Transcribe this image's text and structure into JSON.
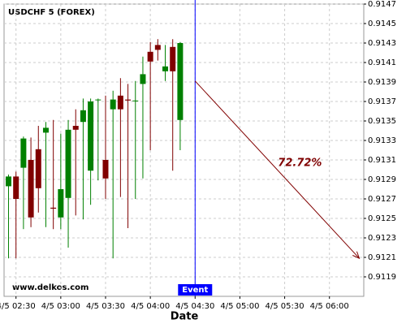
{
  "chart_data": {
    "type": "candlestick",
    "title": "USDCHF 5 (FOREX)",
    "x_label": "Date",
    "watermark": "www.delkos.com",
    "x": [
      "4/5 02:25",
      "4/5 02:30",
      "4/5 02:35",
      "4/5 02:40",
      "4/5 02:45",
      "4/5 02:50",
      "4/5 02:55",
      "4/5 03:00",
      "4/5 03:05",
      "4/5 03:10",
      "4/5 03:15",
      "4/5 03:20",
      "4/5 03:25",
      "4/5 03:30",
      "4/5 03:35",
      "4/5 03:40",
      "4/5 03:45",
      "4/5 03:50",
      "4/5 03:55",
      "4/5 04:00",
      "4/5 04:05",
      "4/5 04:10",
      "4/5 04:15",
      "4/5 04:20"
    ],
    "open": [
      0.91283,
      0.91293,
      0.91302,
      0.9131,
      0.91321,
      0.91338,
      0.91261,
      0.91251,
      0.91271,
      0.91345,
      0.91349,
      0.91299,
      0.91372,
      0.9131,
      0.91362,
      0.91376,
      0.91372,
      0.91371,
      0.91388,
      0.91421,
      0.91428,
      0.91401,
      0.91426,
      0.91351
    ],
    "high": [
      0.91295,
      0.91298,
      0.91334,
      0.91333,
      0.91345,
      0.91349,
      0.91351,
      0.91337,
      0.91351,
      0.91362,
      0.91373,
      0.91373,
      0.91373,
      0.91376,
      0.91381,
      0.91394,
      0.91388,
      0.91391,
      0.91416,
      0.91431,
      0.91434,
      0.91428,
      0.91434,
      0.91431
    ],
    "low": [
      0.91209,
      0.91209,
      0.91239,
      0.91241,
      0.91256,
      0.91241,
      0.91239,
      0.91239,
      0.9122,
      0.91253,
      0.91249,
      0.91264,
      0.91289,
      0.9127,
      0.91209,
      0.91272,
      0.9124,
      0.9127,
      0.91291,
      0.9132,
      0.91412,
      0.91391,
      0.91299,
      0.9132
    ],
    "close": [
      0.91293,
      0.9127,
      0.91332,
      0.91251,
      0.91281,
      0.91343,
      0.9126,
      0.9128,
      0.91341,
      0.91341,
      0.91361,
      0.9137,
      0.91372,
      0.91291,
      0.91372,
      0.91362,
      0.91371,
      0.91371,
      0.91398,
      0.91411,
      0.91423,
      0.91406,
      0.91401,
      0.9143
    ],
    "up_color": "#008000",
    "down_color": "#800000",
    "xlim": [
      "4/5 02:22",
      "4/5 06:23"
    ],
    "xticks": [
      "4/5 02:30",
      "4/5 03:00",
      "4/5 03:30",
      "4/5 04:00",
      "4/5 04:30",
      "4/5 05:00",
      "4/5 05:30",
      "4/5 06:00"
    ],
    "ylim": [
      0.9117,
      0.9147
    ],
    "yticks": [
      0.9119,
      0.9121,
      0.9123,
      0.9125,
      0.9127,
      0.9129,
      0.9131,
      0.9133,
      0.9135,
      0.9137,
      0.9139,
      0.9141,
      0.9143,
      0.9145,
      0.9147
    ],
    "grid": true,
    "event": {
      "x": "4/5 04:30",
      "label": "Event",
      "color": "#0000ff"
    },
    "projection": {
      "x": [
        "4/5 04:30",
        "4/5 06:20"
      ],
      "y": [
        0.91391,
        0.91209
      ],
      "label": "72.72%",
      "color": "#800000"
    }
  }
}
